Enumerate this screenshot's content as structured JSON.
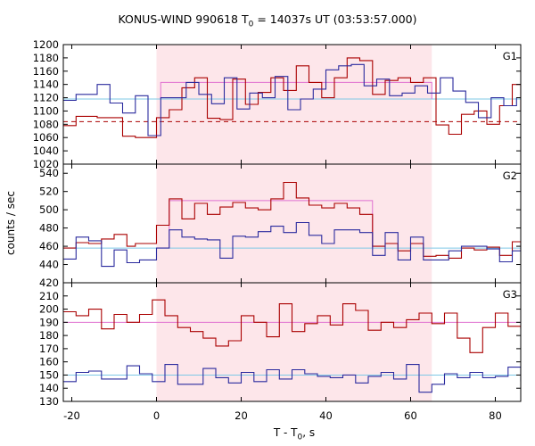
{
  "chart_data": {
    "type": "line",
    "title_main": "KONUS-WIND 990618 T",
    "title_sub": "0",
    "title_rest": " = 14037s UT (03:53:57.000)",
    "ylabel": "counts / sec",
    "xlabel_main": "T - T",
    "xlabel_sub": "0",
    "xlabel_rest": ", s",
    "xlim": [
      -22,
      86
    ],
    "xticks": [
      -20,
      0,
      20,
      40,
      60,
      80
    ],
    "highlight_interval": [
      0,
      65
    ],
    "colors": {
      "source": "#aa0000",
      "background": "#2b2b9e",
      "bg_level": "#7ec8e6",
      "source_level": "#e070d0",
      "highlight": "#fde6ea"
    },
    "panels": [
      {
        "name": "G1",
        "ylim": [
          1020,
          1200
        ],
        "yticks": [
          1020,
          1040,
          1060,
          1080,
          1100,
          1120,
          1140,
          1160,
          1180,
          1200
        ],
        "bg_level": 1118,
        "dashed_level": 1084,
        "source_level": {
          "x": [
            1,
            65
          ],
          "y": 1143
        },
        "series": [
          {
            "role": "source",
            "x": [
              -22,
              -19,
              -14,
              -8,
              -5,
              0,
              3,
              6,
              9,
              12,
              15,
              18,
              21,
              24,
              27,
              30,
              33,
              36,
              39,
              42,
              45,
              48,
              51,
              54,
              57,
              60,
              63,
              66,
              69,
              72,
              75,
              78,
              81,
              84,
              86
            ],
            "y": [
              1078,
              1092,
              1090,
              1062,
              1060,
              1090,
              1102,
              1135,
              1150,
              1089,
              1087,
              1148,
              1110,
              1128,
              1150,
              1131,
              1168,
              1143,
              1120,
              1150,
              1180,
              1176,
              1125,
              1146,
              1150,
              1143,
              1150,
              1079,
              1065,
              1095,
              1100,
              1080,
              1108,
              1140,
              1100
            ]
          },
          {
            "role": "background",
            "x": [
              -22,
              -19,
              -14,
              -11,
              -8,
              -5,
              -2,
              1,
              4,
              7,
              10,
              13,
              16,
              19,
              22,
              25,
              28,
              31,
              34,
              37,
              40,
              43,
              46,
              49,
              52,
              55,
              58,
              61,
              64,
              67,
              70,
              73,
              76,
              79,
              82,
              85
            ],
            "y": [
              1116,
              1125,
              1140,
              1112,
              1097,
              1123,
              1063,
              1120,
              1120,
              1143,
              1125,
              1111,
              1150,
              1103,
              1127,
              1120,
              1152,
              1102,
              1118,
              1133,
              1162,
              1168,
              1170,
              1138,
              1148,
              1123,
              1127,
              1138,
              1127,
              1150,
              1130,
              1113,
              1090,
              1120,
              1108,
              1120
            ]
          }
        ]
      },
      {
        "name": "G2",
        "ylim": [
          420,
          550
        ],
        "yticks": [
          420,
          440,
          460,
          480,
          500,
          520,
          540
        ],
        "bg_level": 458,
        "dashed_level": null,
        "source_level": {
          "x": [
            3,
            51
          ],
          "y": 510
        },
        "series": [
          {
            "role": "source",
            "x": [
              -22,
              -19,
              -16,
              -13,
              -10,
              -7,
              -5,
              0,
              3,
              6,
              9,
              12,
              15,
              18,
              21,
              24,
              27,
              30,
              33,
              36,
              39,
              42,
              45,
              48,
              51,
              54,
              57,
              60,
              63,
              66,
              69,
              72,
              75,
              78,
              81,
              84,
              86
            ],
            "y": [
              458,
              464,
              463,
              468,
              473,
              460,
              463,
              483,
              512,
              490,
              507,
              495,
              503,
              508,
              502,
              500,
              512,
              530,
              513,
              505,
              502,
              507,
              502,
              495,
              460,
              463,
              455,
              463,
              449,
              450,
              447,
              458,
              456,
              459,
              450,
              465,
              455
            ]
          },
          {
            "role": "background",
            "x": [
              -22,
              -19,
              -16,
              -13,
              -10,
              -7,
              -4,
              0,
              3,
              6,
              9,
              12,
              15,
              18,
              21,
              24,
              27,
              30,
              33,
              36,
              39,
              42,
              45,
              48,
              51,
              54,
              57,
              60,
              63,
              66,
              69,
              72,
              75,
              78,
              81,
              84,
              86
            ],
            "y": [
              446,
              470,
              466,
              438,
              456,
              442,
              445,
              458,
              478,
              470,
              468,
              467,
              447,
              471,
              470,
              476,
              482,
              475,
              486,
              472,
              463,
              478,
              478,
              475,
              450,
              475,
              445,
              470,
              445,
              445,
              455,
              460,
              460,
              457,
              443,
              455,
              455
            ]
          }
        ]
      },
      {
        "name": "G3",
        "ylim": [
          130,
          220
        ],
        "yticks": [
          130,
          140,
          150,
          160,
          170,
          180,
          190,
          200,
          210
        ],
        "bg_level": 150,
        "dashed_level": null,
        "source_level": {
          "x": [
            -22,
            86
          ],
          "y": 190
        },
        "series": [
          {
            "role": "source",
            "x": [
              -22,
              -19,
              -16,
              -13,
              -10,
              -7,
              -4,
              -1,
              2,
              5,
              8,
              11,
              14,
              17,
              20,
              23,
              26,
              29,
              32,
              35,
              38,
              41,
              44,
              47,
              50,
              53,
              56,
              59,
              62,
              65,
              68,
              71,
              74,
              77,
              80,
              83,
              86
            ],
            "y": [
              198,
              195,
              200,
              185,
              196,
              190,
              196,
              207,
              195,
              186,
              183,
              178,
              172,
              176,
              195,
              190,
              179,
              204,
              183,
              189,
              195,
              188,
              204,
              199,
              184,
              190,
              186,
              192,
              197,
              189,
              197,
              178,
              167,
              186,
              197,
              187,
              185
            ]
          },
          {
            "role": "background",
            "x": [
              -22,
              -19,
              -16,
              -13,
              -10,
              -7,
              -4,
              -1,
              2,
              5,
              8,
              11,
              14,
              17,
              20,
              23,
              26,
              29,
              32,
              35,
              38,
              41,
              44,
              47,
              50,
              53,
              56,
              59,
              62,
              65,
              68,
              71,
              74,
              77,
              80,
              83,
              86
            ],
            "y": [
              145,
              152,
              153,
              147,
              147,
              157,
              151,
              145,
              158,
              143,
              143,
              155,
              148,
              144,
              152,
              145,
              154,
              147,
              154,
              151,
              149,
              148,
              150,
              144,
              149,
              152,
              147,
              158,
              137,
              143,
              151,
              148,
              152,
              148,
              149,
              156,
              145
            ]
          }
        ]
      }
    ]
  }
}
